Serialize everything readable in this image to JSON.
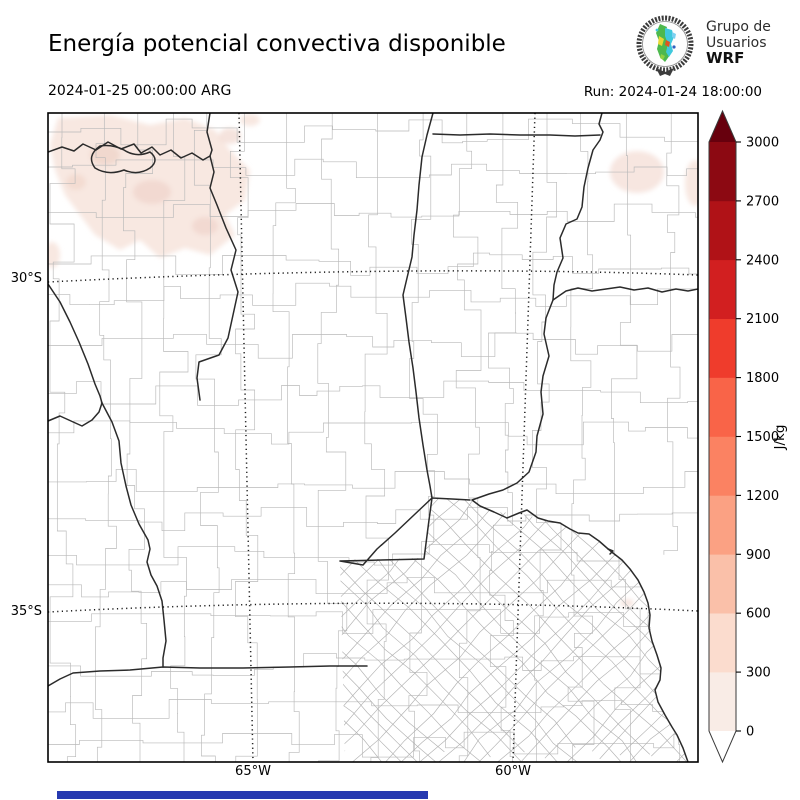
{
  "header": {
    "title": "Energía potencial convectiva disponible",
    "valid_time": "2024-01-25 00:00:00 ARG",
    "run_time": "Run: 2024-01-24 18:00:00",
    "logo": {
      "line1": "Grupo de",
      "line2": "Usuarios",
      "line3": "WRF"
    }
  },
  "map": {
    "lat_ticks": [
      "30°S",
      "35°S"
    ],
    "lon_ticks": [
      "65°W",
      "60°W"
    ]
  },
  "colorbar": {
    "unit": "J/kg",
    "ticks": [
      "0",
      "300",
      "600",
      "900",
      "1200",
      "1500",
      "1800",
      "2100",
      "2400",
      "2700",
      "3000"
    ],
    "segment_colors": [
      "#f9ece6",
      "#fbdcce",
      "#fac0a9",
      "#fba183",
      "#fb8262",
      "#f96448",
      "#ef3c2c",
      "#d21f20",
      "#b01217",
      "#8c0912"
    ],
    "over_color": "#67000d",
    "under_color": "#ffffff"
  },
  "shading": {
    "light": "#f6e2da",
    "medium": "#eed1c6"
  },
  "footer_bar_color": "#2639b0"
}
